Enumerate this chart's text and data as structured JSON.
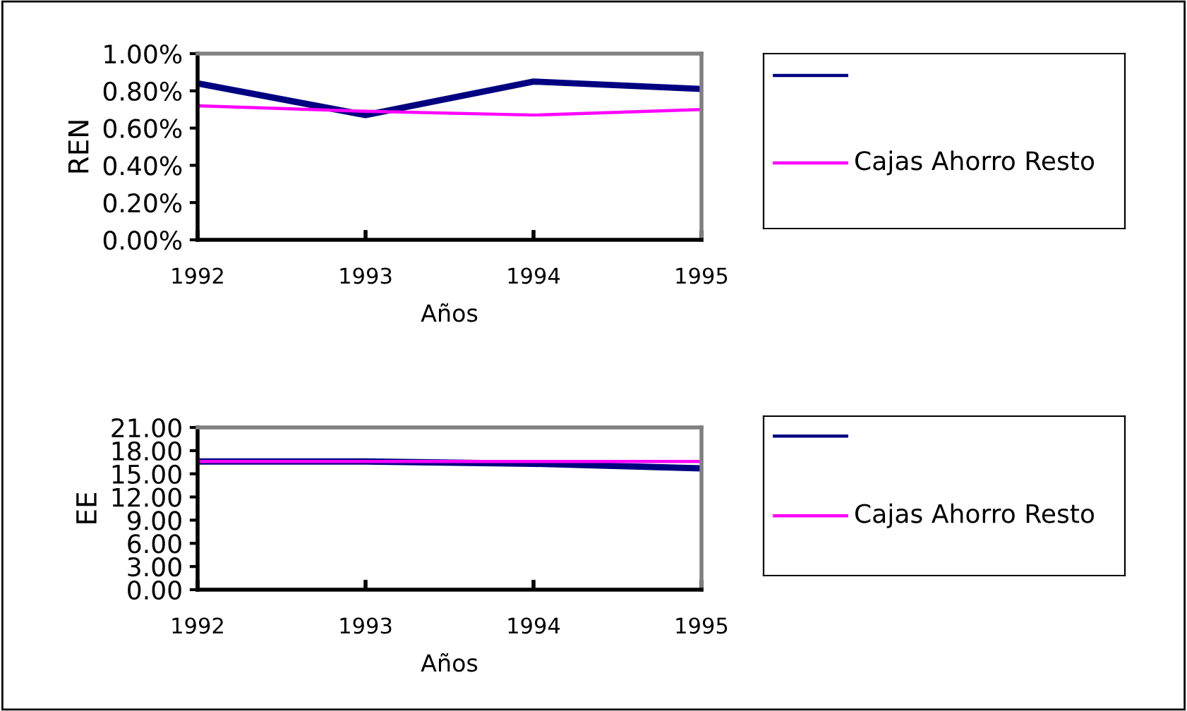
{
  "chart_data": [
    {
      "type": "line",
      "ylabel": "REN",
      "xlabel": "Años",
      "categories": [
        "1992",
        "1993",
        "1994",
        "1995"
      ],
      "ylim": [
        0,
        1
      ],
      "yticks": [
        {
          "value": 0,
          "label": "0.00%"
        },
        {
          "value": 0.2,
          "label": "0.20%"
        },
        {
          "value": 0.4,
          "label": "0.40%"
        },
        {
          "value": 0.6,
          "label": "0.60%"
        },
        {
          "value": 0.8,
          "label": "0.80%"
        },
        {
          "value": 1,
          "label": "1.00%"
        }
      ],
      "legend": "right",
      "marker": "none",
      "series": [
        {
          "color": "#000080",
          "values": [
            0.84,
            0.67,
            0.85,
            0.81
          ]
        },
        {
          "name": "Cajas Ahorro Resto",
          "color": "#ff00ff",
          "values": [
            0.72,
            0.69,
            0.67,
            0.7
          ]
        }
      ]
    },
    {
      "type": "line",
      "ylabel": "EE",
      "xlabel": "Años",
      "categories": [
        "1992",
        "1993",
        "1994",
        "1995"
      ],
      "ylim": [
        0,
        21
      ],
      "yticks": [
        {
          "value": 0,
          "label": "0.00"
        },
        {
          "value": 3,
          "label": "3.00"
        },
        {
          "value": 6,
          "label": "6.00"
        },
        {
          "value": 9,
          "label": "9.00"
        },
        {
          "value": 12,
          "label": "12.00"
        },
        {
          "value": 15,
          "label": "15.00"
        },
        {
          "value": 18,
          "label": "18.00"
        },
        {
          "value": 21,
          "label": "21.00"
        }
      ],
      "legend": "right",
      "marker": "none",
      "series": [
        {
          "color": "#000080",
          "values": [
            16.6,
            16.6,
            16.3,
            15.7
          ]
        },
        {
          "name": "Cajas Ahorro Resto",
          "color": "#ff00ff",
          "values": [
            16.6,
            16.6,
            16.6,
            16.6
          ]
        }
      ]
    }
  ]
}
